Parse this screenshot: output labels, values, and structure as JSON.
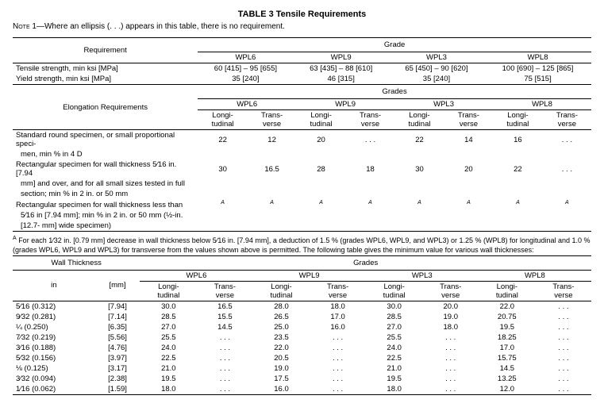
{
  "title": "TABLE 3   Tensile Requirements",
  "note_label": "Note",
  "note_text": " 1—Where an ellipsis (. . .) appears in this table, there is no requirement.",
  "hdr": {
    "requirement": "Requirement",
    "grade": "Grade",
    "grades": "Grades",
    "elong": "Elongation Requirements",
    "wallthick": "Wall Thickness",
    "in": "in",
    "mm": "[mm]",
    "wpl6": "WPL6",
    "wpl9": "WPL9",
    "wpl3": "WPL3",
    "wpl8": "WPL8",
    "longi": "Longi-",
    "tudinal": "tudinal",
    "trans": "Trans-",
    "verse": "verse"
  },
  "rows1": {
    "tensile_label": "Tensile strength, min ksi [MPa]",
    "yield_label": "Yield strength, min ksi [MPa]",
    "tensile": [
      "60 [415] – 95 [655]",
      "63 [435] – 88 [610]",
      "65 [450] – 90 [620]",
      "100 [690] – 125 [865]"
    ],
    "yield": [
      "35 [240]",
      "46 [315]",
      "35 [240]",
      "75 [515]"
    ]
  },
  "rows2": [
    {
      "label": "Standard round specimen, or small proportional speci-",
      "label2": "men, min % in 4 D",
      "v": [
        "22",
        "12",
        "20",
        ". . .",
        "22",
        "14",
        "16",
        ". . ."
      ]
    },
    {
      "label": "Rectangular specimen for wall thickness 5⁄16 in. [7.94",
      "label2": "mm] and over, and for all small sizes tested in full",
      "label3": "section; min % in 2 in. or 50 mm",
      "v": [
        "30",
        "16.5",
        "28",
        "18",
        "30",
        "20",
        "22",
        ". . ."
      ]
    },
    {
      "label": "Rectangular specimen for wall thickness less than",
      "label2": "5⁄16 in [7.94 mm]; min % in 2 in. or 50 mm (½-in.",
      "label3": "[12.7- mm] wide specimen)",
      "v": [
        "A",
        "A",
        "A",
        "A",
        "A",
        "A",
        "A",
        "A"
      ],
      "sup": true
    }
  ],
  "footnoteA": "A For each 1⁄32 in. [0.79 mm] decrease in wall thickness below 5⁄16 in. [7.94 mm], a deduction of 1.5 % (grades WPL6, WPL9, and WPL3) or 1.25 % (WPL8) for longitudinal and 1.0 % (grades WPL6, WPL9 and WPL3) for transverse from the values shown above is permitted. The following table gives the minimum value for various wall thicknesses:",
  "rows3": [
    {
      "in": "5⁄16 (0.312)",
      "mm": "[7.94]",
      "v": [
        "30.0",
        "16.5",
        "28.0",
        "18.0",
        "30.0",
        "20.0",
        "22.0",
        ". . ."
      ]
    },
    {
      "in": "9⁄32 (0.281)",
      "mm": "[7.14]",
      "v": [
        "28.5",
        "15.5",
        "26.5",
        "17.0",
        "28.5",
        "19.0",
        "20.75",
        ". . ."
      ]
    },
    {
      "in": "¼ (0.250)",
      "mm": "[6.35]",
      "v": [
        "27.0",
        "14.5",
        "25.0",
        "16.0",
        "27.0",
        "18.0",
        "19.5",
        ". . ."
      ]
    },
    {
      "in": "7⁄32 (0.219)",
      "mm": "[5.56]",
      "v": [
        "25.5",
        ". . .",
        "23.5",
        ". . .",
        "25.5",
        ". . .",
        "18.25",
        ". . ."
      ]
    },
    {
      "in": "3⁄16 (0.188)",
      "mm": "[4.76]",
      "v": [
        "24.0",
        ". . .",
        "22.0",
        ". . .",
        "24.0",
        ". . .",
        "17.0",
        ". . ."
      ]
    },
    {
      "in": "5⁄32 (0.156)",
      "mm": "[3.97]",
      "v": [
        "22.5",
        ". . .",
        "20.5",
        ". . .",
        "22.5",
        ". . .",
        "15.75",
        ". . ."
      ]
    },
    {
      "in": "⅛ (0.125)",
      "mm": "[3.17]",
      "v": [
        "21.0",
        ". . .",
        "19.0",
        ". . .",
        "21.0",
        ". . .",
        "14.5",
        ". . ."
      ]
    },
    {
      "in": "3⁄32 (0.094)",
      "mm": "[2.38]",
      "v": [
        "19.5",
        ". . .",
        "17.5",
        ". . .",
        "19.5",
        ". . .",
        "13.25",
        ". . ."
      ]
    },
    {
      "in": "1⁄16 (0.062)",
      "mm": "[1.59]",
      "v": [
        "18.0",
        ". . .",
        "16.0",
        ". . .",
        "18.0",
        ". . .",
        "12.0",
        ". . ."
      ]
    }
  ]
}
